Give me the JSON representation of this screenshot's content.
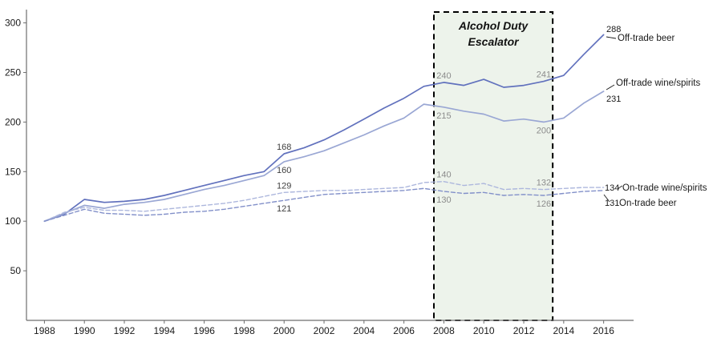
{
  "chart_data": {
    "type": "line",
    "title": "",
    "xlabel": "",
    "ylabel": "",
    "x": [
      1988,
      1989,
      1990,
      1991,
      1992,
      1993,
      1994,
      1995,
      1996,
      1997,
      1998,
      1999,
      2000,
      2001,
      2002,
      2003,
      2004,
      2005,
      2006,
      2007,
      2008,
      2009,
      2010,
      2011,
      2012,
      2013,
      2014,
      2015,
      2016
    ],
    "x_tick_labels": [
      "1988",
      "1990",
      "1992",
      "1994",
      "1996",
      "1998",
      "2000",
      "2002",
      "2004",
      "2006",
      "2008",
      "2010",
      "2012",
      "2014",
      "2016"
    ],
    "y_ticks": [
      50,
      100,
      150,
      200,
      250,
      300
    ],
    "ylim": [
      0,
      315
    ],
    "grid": "off",
    "series": [
      {
        "name": "Off-trade beer",
        "line_style": "solid",
        "color": "#6171bd",
        "values": [
          100,
          107,
          122,
          119,
          120,
          122,
          126,
          131,
          136,
          141,
          146,
          150,
          168,
          174,
          182,
          192,
          203,
          214,
          224,
          236,
          240,
          237,
          243,
          235,
          237,
          241,
          247,
          268,
          288
        ]
      },
      {
        "name": "Off-trade wine/spirits",
        "line_style": "solid",
        "color": "#9aa7d4",
        "values": [
          100,
          108,
          116,
          113,
          117,
          119,
          122,
          127,
          132,
          136,
          141,
          146,
          160,
          165,
          171,
          179,
          187,
          196,
          204,
          218,
          215,
          211,
          208,
          201,
          203,
          200,
          204,
          219,
          231
        ]
      },
      {
        "name": "On-trade wine/spirits",
        "line_style": "dashed",
        "color": "#adb7dd",
        "values": [
          100,
          109,
          114,
          111,
          111,
          110,
          112,
          114,
          116,
          118,
          121,
          125,
          129,
          130,
          131,
          131,
          132,
          133,
          134,
          139,
          140,
          136,
          138,
          132,
          133,
          132,
          133,
          134,
          134
        ]
      },
      {
        "name": "On-trade beer",
        "line_style": "dashed",
        "color": "#8290c9",
        "values": [
          100,
          106,
          112,
          108,
          107,
          106,
          107,
          109,
          110,
          112,
          115,
          118,
          121,
          124,
          127,
          128,
          129,
          130,
          131,
          133,
          130,
          128,
          129,
          126,
          127,
          126,
          128,
          130,
          131
        ]
      }
    ],
    "highlight_band": {
      "title_line1": "Alcohol Duty",
      "title_line2": "Escalator",
      "x_start": 2007.5,
      "x_end": 2013.45,
      "fill": "#edf3eb",
      "border_color": "#000000"
    },
    "point_labels": [
      {
        "year": 2000,
        "series": 0,
        "value": 168,
        "placement": "above",
        "color": "#3f3f3f"
      },
      {
        "year": 2000,
        "series": 1,
        "value": 160,
        "placement": "below",
        "color": "#3f3f3f"
      },
      {
        "year": 2000,
        "series": 2,
        "value": 129,
        "placement": "above",
        "color": "#3f3f3f"
      },
      {
        "year": 2000,
        "series": 3,
        "value": 121,
        "placement": "below",
        "color": "#3f3f3f"
      },
      {
        "year": 2008,
        "series": 0,
        "value": 240,
        "placement": "above",
        "color": "#8c8c8c"
      },
      {
        "year": 2008,
        "series": 1,
        "value": 215,
        "placement": "below",
        "color": "#8c8c8c"
      },
      {
        "year": 2008,
        "series": 2,
        "value": 140,
        "placement": "above",
        "color": "#8c8c8c"
      },
      {
        "year": 2008,
        "series": 3,
        "value": 130,
        "placement": "below",
        "color": "#8c8c8c"
      },
      {
        "year": 2013,
        "series": 0,
        "value": 241,
        "placement": "above",
        "color": "#8c8c8c"
      },
      {
        "year": 2013,
        "series": 1,
        "value": 200,
        "placement": "below",
        "color": "#8c8c8c"
      },
      {
        "year": 2013,
        "series": 2,
        "value": 132,
        "placement": "above",
        "color": "#8c8c8c"
      },
      {
        "year": 2013,
        "series": 3,
        "value": 126,
        "placement": "below",
        "color": "#8c8c8c"
      }
    ],
    "end_labels": [
      {
        "series": 0,
        "value": 288,
        "name": "Off-trade beer"
      },
      {
        "series": 1,
        "value": 231,
        "name": "Off-trade wine/spirits"
      },
      {
        "series": 2,
        "value": 134,
        "name": "On-trade wine/spirits"
      },
      {
        "series": 3,
        "value": 131,
        "name": "On-trade beer"
      }
    ]
  }
}
